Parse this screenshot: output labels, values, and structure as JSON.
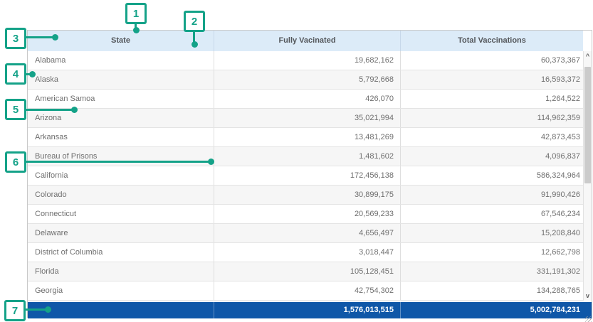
{
  "colors": {
    "accent_green": "#14a288",
    "header_bg": "#dcebf8",
    "total_row_bg": "#0f57a8",
    "alt_row_bg": "#f6f6f6"
  },
  "table": {
    "columns": [
      "State",
      "Fully Vacinated",
      "Total Vaccinations"
    ],
    "rows": [
      [
        "Alabama",
        "19,682,162",
        "60,373,367"
      ],
      [
        "Alaska",
        "5,792,668",
        "16,593,372"
      ],
      [
        "American Samoa",
        "426,070",
        "1,264,522"
      ],
      [
        "Arizona",
        "35,021,994",
        "114,962,359"
      ],
      [
        "Arkansas",
        "13,481,269",
        "42,873,453"
      ],
      [
        "Bureau of Prisons",
        "1,481,602",
        "4,096,837"
      ],
      [
        "California",
        "172,456,138",
        "586,324,964"
      ],
      [
        "Colorado",
        "30,899,175",
        "91,990,426"
      ],
      [
        "Connecticut",
        "20,569,233",
        "67,546,234"
      ],
      [
        "Delaware",
        "4,656,497",
        "15,208,840"
      ],
      [
        "District of Columbia",
        "3,018,447",
        "12,662,798"
      ],
      [
        "Florida",
        "105,128,451",
        "331,191,302"
      ],
      [
        "Georgia",
        "42,754,302",
        "134,288,765"
      ]
    ],
    "total_row": {
      "state": "",
      "fully_vacinated": "1,576,013,515",
      "total_vaccinations": "5,002,784,231"
    }
  },
  "callouts": [
    {
      "label": "1"
    },
    {
      "label": "2"
    },
    {
      "label": "3"
    },
    {
      "label": "4"
    },
    {
      "label": "5"
    },
    {
      "label": "6"
    },
    {
      "label": "7"
    }
  ],
  "scrollbar": {
    "up_icon": "^",
    "down_icon": "v"
  }
}
